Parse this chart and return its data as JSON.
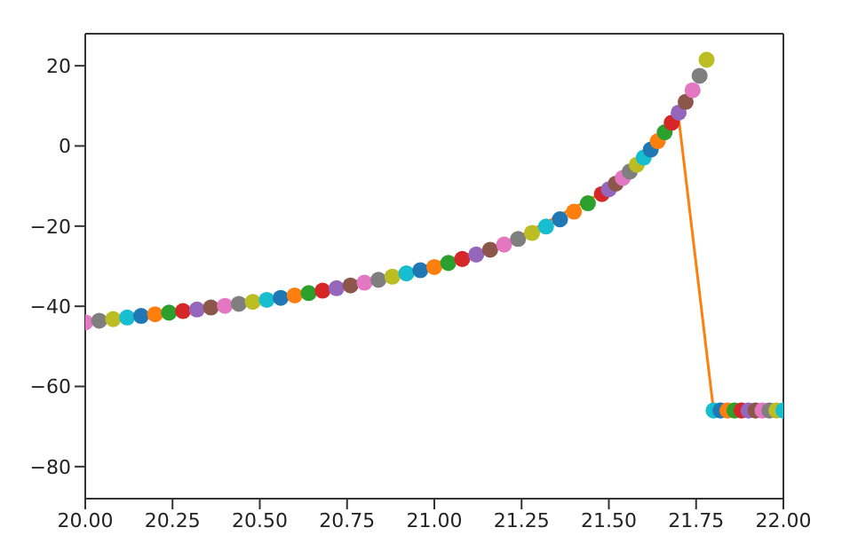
{
  "chart_data": {
    "type": "scatter",
    "xlim": [
      20.0,
      22.0
    ],
    "xticks": [
      {
        "value": 20.0,
        "label": "20.00"
      },
      {
        "value": 20.25,
        "label": "20.25"
      },
      {
        "value": 20.5,
        "label": "20.50"
      },
      {
        "value": 20.75,
        "label": "20.75"
      },
      {
        "value": 21.0,
        "label": "21.00"
      },
      {
        "value": 21.25,
        "label": "21.25"
      },
      {
        "value": 21.5,
        "label": "21.50"
      },
      {
        "value": 21.75,
        "label": "21.75"
      },
      {
        "value": 22.0,
        "label": "22.00"
      }
    ],
    "ylim": [
      -88,
      28
    ],
    "yticks": [
      -80,
      -60,
      -40,
      -20,
      0,
      20
    ],
    "grid": false,
    "series": [
      {
        "marker": "circle",
        "x": [
          20.0,
          20.04,
          20.08,
          20.12,
          20.16,
          20.2,
          20.24,
          20.28,
          20.32,
          20.36,
          20.4,
          20.44,
          20.48,
          20.52,
          20.56,
          20.6,
          20.64,
          20.68,
          20.72,
          20.76,
          20.8,
          20.84,
          20.88,
          20.92,
          20.96,
          21.0,
          21.04,
          21.08,
          21.12,
          21.16,
          21.2,
          21.24,
          21.28,
          21.32,
          21.36,
          21.4,
          21.44,
          21.48,
          21.5,
          21.52,
          21.54,
          21.56,
          21.58,
          21.6,
          21.62,
          21.64,
          21.66,
          21.68,
          21.7,
          21.72,
          21.74,
          21.76,
          21.78,
          21.8,
          21.82,
          21.84,
          21.86,
          21.88,
          21.9,
          21.92,
          21.94,
          21.96,
          21.98,
          22.0
        ],
        "values": [
          -44.0,
          -43.6,
          -43.2,
          -42.8,
          -42.4,
          -42.0,
          -41.6,
          -41.2,
          -40.8,
          -40.3,
          -39.9,
          -39.4,
          -38.9,
          -38.4,
          -37.9,
          -37.3,
          -36.7,
          -36.1,
          -35.5,
          -34.8,
          -34.1,
          -33.4,
          -32.6,
          -31.8,
          -31.0,
          -30.2,
          -29.2,
          -28.2,
          -27.1,
          -25.9,
          -24.6,
          -23.2,
          -21.7,
          -20.1,
          -18.3,
          -16.4,
          -14.3,
          -12.0,
          -10.8,
          -9.4,
          -8.0,
          -6.4,
          -4.7,
          -2.9,
          -0.9,
          1.2,
          3.4,
          5.8,
          8.3,
          11.0,
          13.9,
          17.5,
          21.5,
          -66,
          -66,
          -66,
          -66,
          -66,
          -66,
          -66,
          -66,
          -66,
          -66,
          -66
        ],
        "colors": [
          "#e377c2",
          "#7f7f7f",
          "#bcbd22",
          "#17becf",
          "#1f77b4",
          "#ff7f0e",
          "#2ca02c",
          "#d62728",
          "#9467bd",
          "#8c564b",
          "#e377c2",
          "#7f7f7f",
          "#bcbd22",
          "#17becf",
          "#1f77b4",
          "#ff7f0e",
          "#2ca02c",
          "#d62728",
          "#9467bd",
          "#8c564b",
          "#e377c2",
          "#7f7f7f",
          "#bcbd22",
          "#17becf",
          "#1f77b4",
          "#ff7f0e",
          "#2ca02c",
          "#d62728",
          "#9467bd",
          "#8c564b",
          "#e377c2",
          "#7f7f7f",
          "#bcbd22",
          "#17becf",
          "#1f77b4",
          "#ff7f0e",
          "#2ca02c",
          "#d62728",
          "#9467bd",
          "#8c564b",
          "#e377c2",
          "#7f7f7f",
          "#bcbd22",
          "#17becf",
          "#1f77b4",
          "#ff7f0e",
          "#2ca02c",
          "#d62728",
          "#9467bd",
          "#8c564b",
          "#e377c2",
          "#7f7f7f",
          "#bcbd22",
          "#17becf",
          "#1f77b4",
          "#ff7f0e",
          "#2ca02c",
          "#d62728",
          "#9467bd",
          "#8c564b",
          "#e377c2",
          "#7f7f7f",
          "#bcbd22",
          "#17becf"
        ]
      },
      {
        "type": "line",
        "color": "#ff7f0e",
        "line_style": "solid",
        "x": [
          20.0,
          20.4,
          20.8,
          21.2,
          21.5,
          21.6,
          21.7,
          21.8,
          22.0
        ],
        "values": [
          -44.0,
          -39.9,
          -34.1,
          -24.6,
          -10.8,
          -2.9,
          7.0,
          -66,
          -66
        ]
      }
    ]
  }
}
